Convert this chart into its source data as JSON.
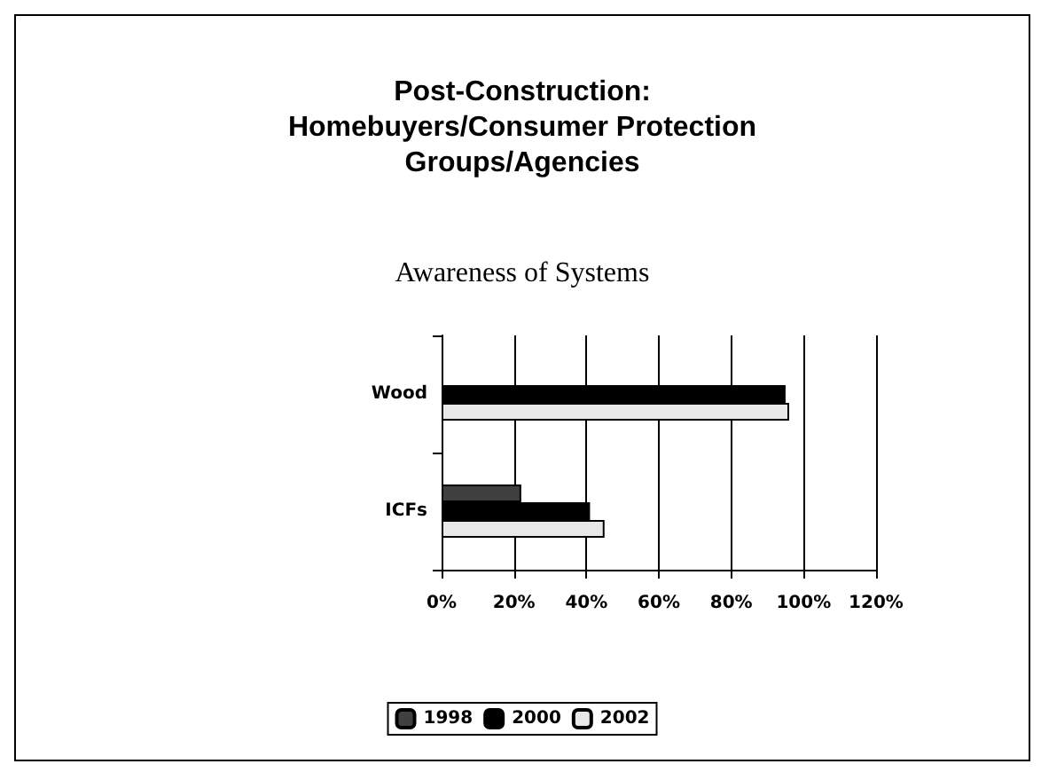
{
  "chart_data": {
    "type": "bar",
    "orientation": "horizontal",
    "title": "Post-Construction:\nHomebuyers/Consumer Protection\nGroups/Agencies",
    "subtitle": "Awareness of Systems",
    "categories": [
      "Wood",
      "ICFs"
    ],
    "series": [
      {
        "name": "1998",
        "color": "#404040",
        "values": [
          null,
          22
        ]
      },
      {
        "name": "2000",
        "color": "#000000",
        "values": [
          95,
          41
        ]
      },
      {
        "name": "2002",
        "color": "#e8e8e8",
        "values": [
          96,
          45
        ]
      }
    ],
    "xlim": [
      0,
      120
    ],
    "xticks": [
      {
        "value": 0,
        "label": "0%"
      },
      {
        "value": 20,
        "label": "20%"
      },
      {
        "value": 40,
        "label": "40%"
      },
      {
        "value": 60,
        "label": "60%"
      },
      {
        "value": 80,
        "label": "80%"
      },
      {
        "value": 100,
        "label": "100%"
      },
      {
        "value": 120,
        "label": "120%"
      }
    ],
    "grid": "x",
    "legend": "bottom"
  }
}
